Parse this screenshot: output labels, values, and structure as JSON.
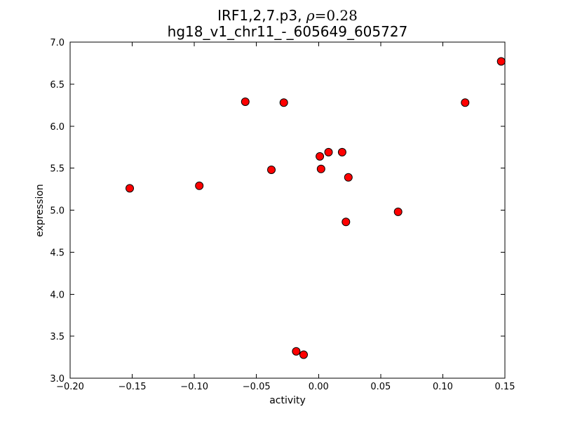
{
  "figure": {
    "title_line1_prefix": "IRF1,2,7.p3, ",
    "title_line1_rho": "ρ",
    "title_line1_value": "=0.28",
    "title_line2": "hg18_v1_chr11_-_605649_605727"
  },
  "chart_data": {
    "type": "scatter",
    "title": "IRF1,2,7.p3, ρ=0.28",
    "subtitle": "hg18_v1_chr11_-_605649_605727",
    "xlabel": "activity",
    "ylabel": "expression",
    "xlim": [
      -0.2,
      0.15
    ],
    "ylim": [
      3.0,
      7.0
    ],
    "xticks": [
      -0.2,
      -0.15,
      -0.1,
      -0.05,
      0.0,
      0.05,
      0.1,
      0.15
    ],
    "xtick_labels": [
      "−0.20",
      "−0.15",
      "−0.10",
      "−0.05",
      "0.00",
      "0.05",
      "0.10",
      "0.15"
    ],
    "yticks": [
      3.0,
      3.5,
      4.0,
      4.5,
      5.0,
      5.5,
      6.0,
      6.5,
      7.0
    ],
    "ytick_labels": [
      "3.0",
      "3.5",
      "4.0",
      "4.5",
      "5.0",
      "5.5",
      "6.0",
      "6.5",
      "7.0"
    ],
    "grid": false,
    "legend": null,
    "marker": {
      "shape": "circle",
      "fill": "#ff0000",
      "edge": "#000000",
      "radius_px": 5.5
    },
    "x": [
      -0.152,
      -0.096,
      -0.059,
      -0.038,
      -0.028,
      -0.018,
      -0.012,
      0.001,
      0.002,
      0.008,
      0.019,
      0.022,
      0.024,
      0.064,
      0.118,
      0.147
    ],
    "y": [
      5.26,
      5.29,
      6.29,
      5.48,
      6.28,
      3.32,
      3.28,
      5.64,
      5.49,
      5.69,
      5.69,
      4.86,
      5.39,
      4.98,
      6.28,
      6.77
    ]
  }
}
